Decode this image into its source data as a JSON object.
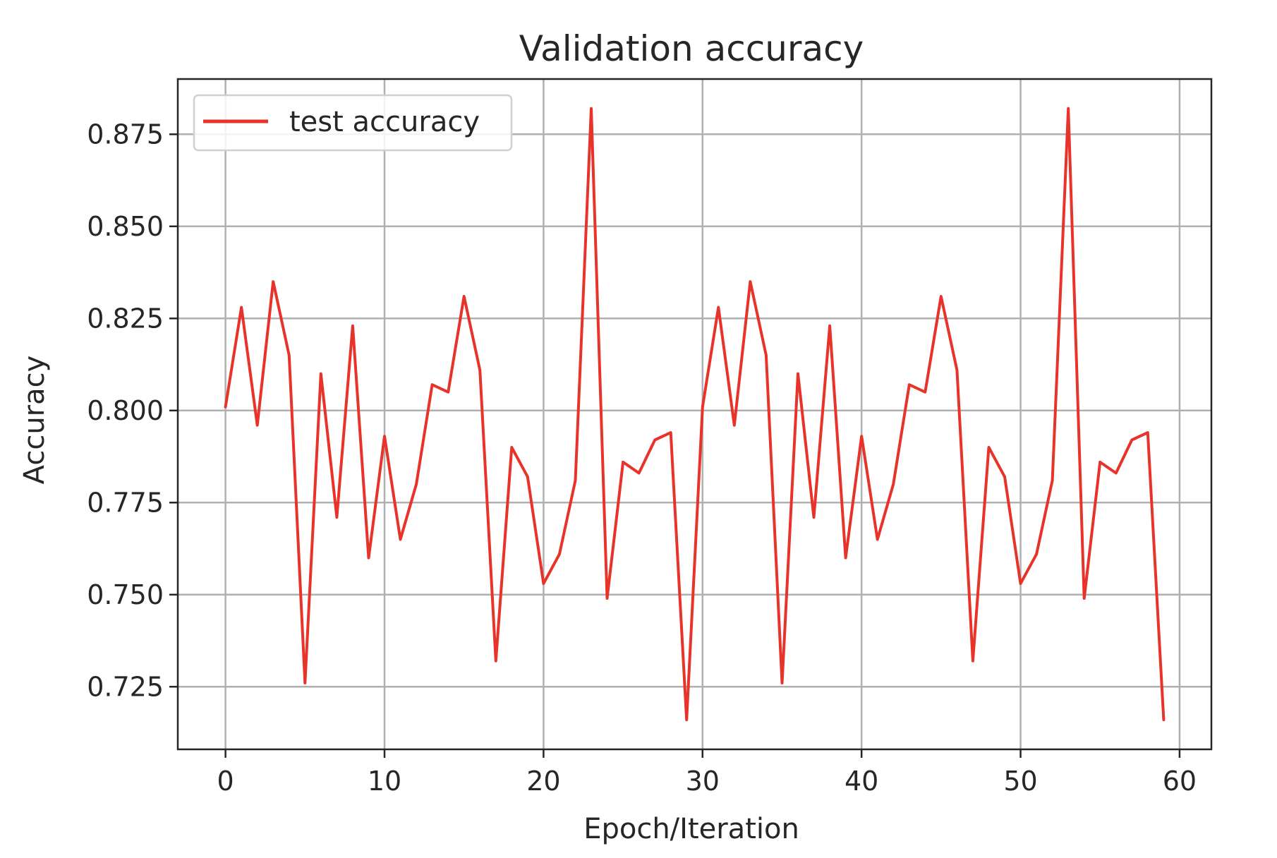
{
  "chart_data": {
    "type": "line",
    "title": "Validation accuracy",
    "xlabel": "Epoch/Iteration",
    "ylabel": "Accuracy",
    "xlim": [
      -3,
      62
    ],
    "ylim": [
      0.708,
      0.89
    ],
    "xticks": [
      0,
      10,
      20,
      30,
      40,
      50,
      60
    ],
    "yticks": [
      0.725,
      0.75,
      0.775,
      0.8,
      0.825,
      0.85,
      0.875
    ],
    "xtick_labels": [
      "0",
      "10",
      "20",
      "30",
      "40",
      "50",
      "60"
    ],
    "ytick_labels": [
      "0.725",
      "0.750",
      "0.775",
      "0.800",
      "0.825",
      "0.850",
      "0.875"
    ],
    "grid": true,
    "legend_position": "upper-left",
    "series": [
      {
        "name": "test accuracy",
        "color": "#e8332a",
        "x": [
          0,
          1,
          2,
          3,
          4,
          5,
          6,
          7,
          8,
          9,
          10,
          11,
          12,
          13,
          14,
          15,
          16,
          17,
          18,
          19,
          20,
          21,
          22,
          23,
          24,
          25,
          26,
          27,
          28,
          29,
          30,
          31,
          32,
          33,
          34,
          35,
          36,
          37,
          38,
          39,
          40,
          41,
          42,
          43,
          44,
          45,
          46,
          47,
          48,
          49,
          50,
          51,
          52,
          53,
          54,
          55,
          56,
          57,
          58,
          59
        ],
        "values": [
          0.801,
          0.828,
          0.796,
          0.835,
          0.815,
          0.726,
          0.81,
          0.771,
          0.823,
          0.76,
          0.793,
          0.765,
          0.78,
          0.807,
          0.805,
          0.831,
          0.811,
          0.732,
          0.79,
          0.782,
          0.753,
          0.761,
          0.781,
          0.882,
          0.749,
          0.786,
          0.783,
          0.792,
          0.794,
          0.716,
          0.801,
          0.828,
          0.796,
          0.835,
          0.815,
          0.726,
          0.81,
          0.771,
          0.823,
          0.76,
          0.793,
          0.765,
          0.78,
          0.807,
          0.805,
          0.831,
          0.811,
          0.732,
          0.79,
          0.782,
          0.753,
          0.761,
          0.781,
          0.882,
          0.749,
          0.786,
          0.783,
          0.792,
          0.794,
          0.716
        ]
      }
    ]
  }
}
